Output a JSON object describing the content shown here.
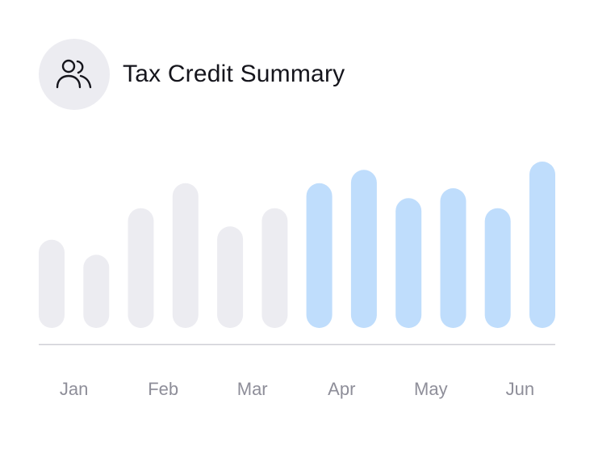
{
  "header": {
    "title": "Tax Credit Summary",
    "icon": "users-icon"
  },
  "colors": {
    "inactive_bar": "#ECECF1",
    "active_bar": "#BFDDFC",
    "baseline": "#CFCFD6",
    "tick_label": "#8E8E99",
    "avatar_bg": "#ECECF1"
  },
  "chart_data": {
    "type": "bar",
    "title": "Tax Credit Summary",
    "xlabel": "",
    "ylabel": "",
    "ylim": [
      0,
      1
    ],
    "grid": false,
    "legend": "none",
    "tick_labels": [
      "Jan",
      "Feb",
      "Mar",
      "Apr",
      "May",
      "Jun"
    ],
    "bars": [
      {
        "value": 0.53,
        "highlighted": false
      },
      {
        "value": 0.44,
        "highlighted": false
      },
      {
        "value": 0.72,
        "highlighted": false
      },
      {
        "value": 0.87,
        "highlighted": false
      },
      {
        "value": 0.61,
        "highlighted": false
      },
      {
        "value": 0.72,
        "highlighted": false
      },
      {
        "value": 0.87,
        "highlighted": true
      },
      {
        "value": 0.95,
        "highlighted": true
      },
      {
        "value": 0.78,
        "highlighted": true
      },
      {
        "value": 0.84,
        "highlighted": true
      },
      {
        "value": 0.72,
        "highlighted": true
      },
      {
        "value": 1.0,
        "highlighted": true
      }
    ]
  }
}
